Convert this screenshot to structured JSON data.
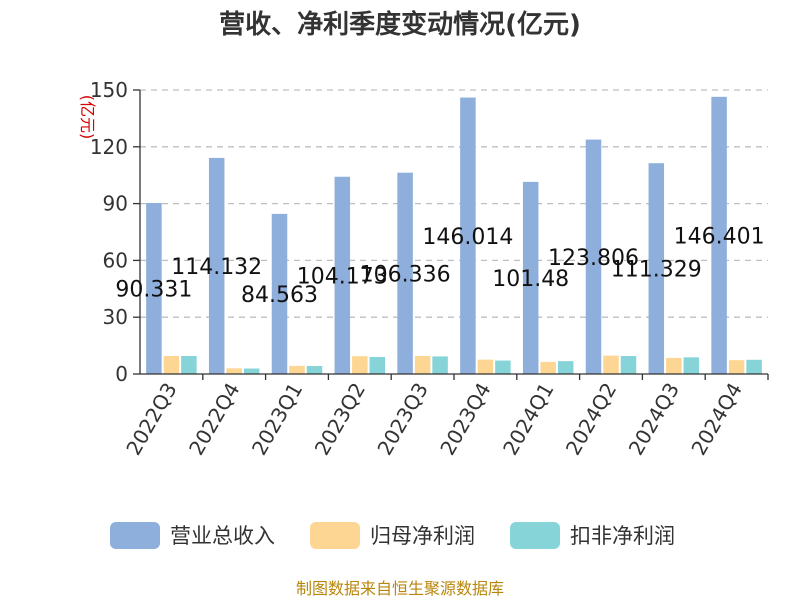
{
  "chart_data": {
    "type": "bar",
    "title": "营收、净利季度变动情况(亿元)",
    "unit_label": "(亿元)",
    "categories": [
      "2022Q3",
      "2022Q4",
      "2023Q1",
      "2023Q2",
      "2023Q3",
      "2023Q4",
      "2024Q1",
      "2024Q2",
      "2024Q3",
      "2024Q4"
    ],
    "series": [
      {
        "name": "营业总收入",
        "color": "#8eaedb",
        "values": [
          90.331,
          114.132,
          84.563,
          104.173,
          106.336,
          146.014,
          101.48,
          123.806,
          111.329,
          146.401
        ]
      },
      {
        "name": "归母净利润",
        "color": "#fed694",
        "values": [
          9.5,
          3.0,
          4.3,
          9.4,
          9.5,
          7.6,
          6.4,
          9.7,
          8.5,
          7.3
        ]
      },
      {
        "name": "扣非净利润",
        "color": "#86d4d8",
        "values": [
          9.5,
          2.9,
          4.2,
          9.0,
          9.3,
          7.1,
          6.8,
          9.5,
          8.8,
          7.5
        ]
      }
    ],
    "data_labels": [
      "90.331",
      "114.132",
      "84.563",
      "104.173",
      "106.336",
      "146.014",
      "101.48",
      "123.806",
      "111.329",
      "146.401"
    ],
    "yticks": [
      0,
      30,
      60,
      90,
      120,
      150
    ],
    "ylim": [
      0,
      150
    ],
    "grid": true,
    "legend_position": "bottom"
  },
  "source_text": "制图数据来自恒生聚源数据库"
}
